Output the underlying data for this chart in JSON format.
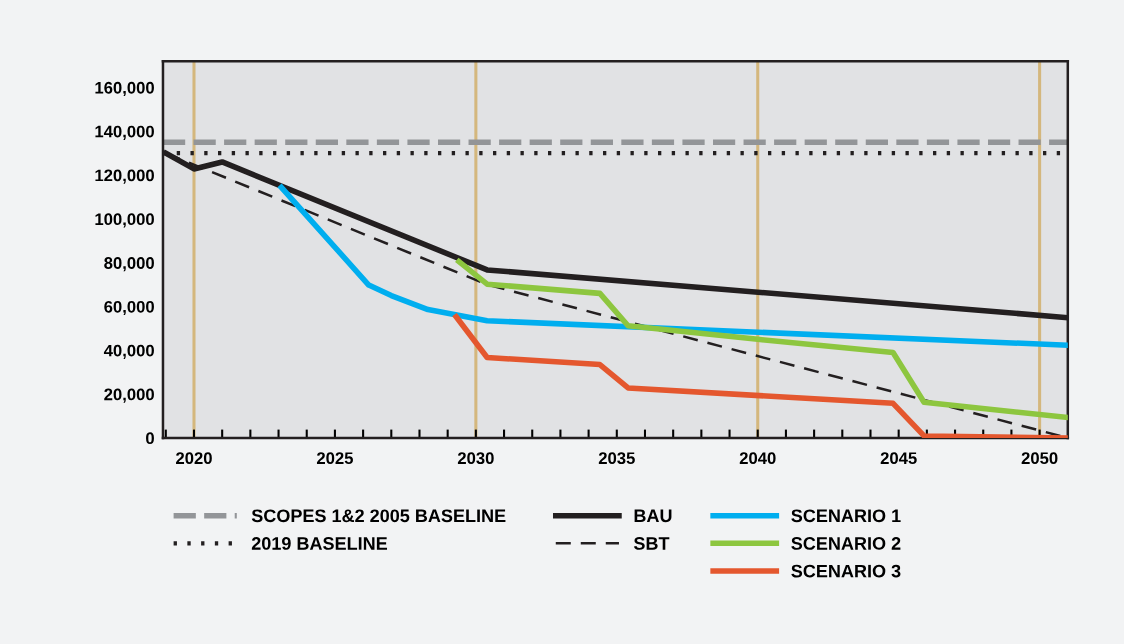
{
  "chart_data": {
    "type": "line",
    "xlim": [
      2018.9,
      2051
    ],
    "ylim": [
      0,
      172000
    ],
    "xticks": [
      {
        "value": 2019,
        "label": null
      },
      2020,
      {
        "value": 2021,
        "label": null
      },
      {
        "value": 2022,
        "label": null
      },
      {
        "value": 2023,
        "label": null
      },
      {
        "value": 2024,
        "label": null
      },
      2025,
      {
        "value": 2026,
        "label": null
      },
      {
        "value": 2027,
        "label": null
      },
      {
        "value": 2028,
        "label": null
      },
      {
        "value": 2029,
        "label": null
      },
      2030,
      {
        "value": 2031,
        "label": null
      },
      {
        "value": 2032,
        "label": null
      },
      {
        "value": 2033,
        "label": null
      },
      {
        "value": 2034,
        "label": null
      },
      2035,
      {
        "value": 2036,
        "label": null
      },
      {
        "value": 2037,
        "label": null
      },
      {
        "value": 2038,
        "label": null
      },
      {
        "value": 2039,
        "label": null
      },
      2040,
      {
        "value": 2041,
        "label": null
      },
      {
        "value": 2042,
        "label": null
      },
      {
        "value": 2043,
        "label": null
      },
      {
        "value": 2044,
        "label": null
      },
      2045,
      {
        "value": 2046,
        "label": null
      },
      {
        "value": 2047,
        "label": null
      },
      {
        "value": 2048,
        "label": null
      },
      {
        "value": 2049,
        "label": null
      },
      2050
    ],
    "yticks": [
      {
        "value": 0,
        "label": "0"
      },
      {
        "value": 20000,
        "label": "20,000"
      },
      {
        "value": 40000,
        "label": "40,000"
      },
      {
        "value": 60000,
        "label": "60,000"
      },
      {
        "value": 80000,
        "label": "80,000"
      },
      {
        "value": 100000,
        "label": "100,000"
      },
      {
        "value": 120000,
        "label": "120,000"
      },
      {
        "value": 140000,
        "label": "140,000"
      },
      {
        "value": 160000,
        "label": "160,000"
      }
    ],
    "grid": false,
    "legend": "bottom",
    "ref_lines": [
      {
        "axis": "y",
        "value": 135000,
        "label": "SCOPES 1&2 2005 BASELINE",
        "color": "#939598",
        "line_style": "dashed"
      },
      {
        "axis": "y",
        "value": 130000,
        "label": "2019 BASELINE",
        "color": "#231f20",
        "line_style": "dotted"
      },
      {
        "axis": "x",
        "value": 2020,
        "color": "#d4b77d",
        "line_style": "solid"
      },
      {
        "axis": "x",
        "value": 2030,
        "color": "#d4b77d",
        "line_style": "solid"
      },
      {
        "axis": "x",
        "value": 2040,
        "color": "#d4b77d",
        "line_style": "solid"
      },
      {
        "axis": "x",
        "value": 2050,
        "color": "#d4b77d",
        "line_style": "solid"
      }
    ],
    "series": [
      {
        "name": "BAU",
        "color": "#231f20",
        "line_style": "solid",
        "x": [
          2019,
          2020,
          2021,
          2030.4,
          2051
        ],
        "values": [
          130000,
          122800,
          126000,
          76700,
          54900
        ]
      },
      {
        "name": "SBT",
        "color": "#231f20",
        "line_style": "dashed",
        "x": [
          2019,
          2030.4,
          2051
        ],
        "values": [
          130000,
          70000,
          0
        ]
      },
      {
        "name": "SCENARIO 1",
        "color": "#00aeef",
        "line_style": "solid",
        "x": [
          2023.1,
          2026.2,
          2027,
          2028.3,
          2030.4,
          2051
        ],
        "values": [
          114400,
          69800,
          65000,
          58600,
          53500,
          42300
        ]
      },
      {
        "name": "SCENARIO 2",
        "color": "#8dc63f",
        "line_style": "solid",
        "x": [
          2029.4,
          2030.4,
          2034.4,
          2035.4,
          2040,
          2044.8,
          2045.9,
          2051
        ],
        "values": [
          80500,
          70200,
          66000,
          51200,
          45000,
          39000,
          16300,
          9300
        ]
      },
      {
        "name": "SCENARIO 3",
        "color": "#e4572e",
        "line_style": "solid",
        "x": [
          2029.3,
          2030.4,
          2034.4,
          2035.4,
          2044.8,
          2045.9,
          2051
        ],
        "values": [
          55300,
          36700,
          33500,
          22800,
          15800,
          900,
          0
        ]
      }
    ]
  }
}
